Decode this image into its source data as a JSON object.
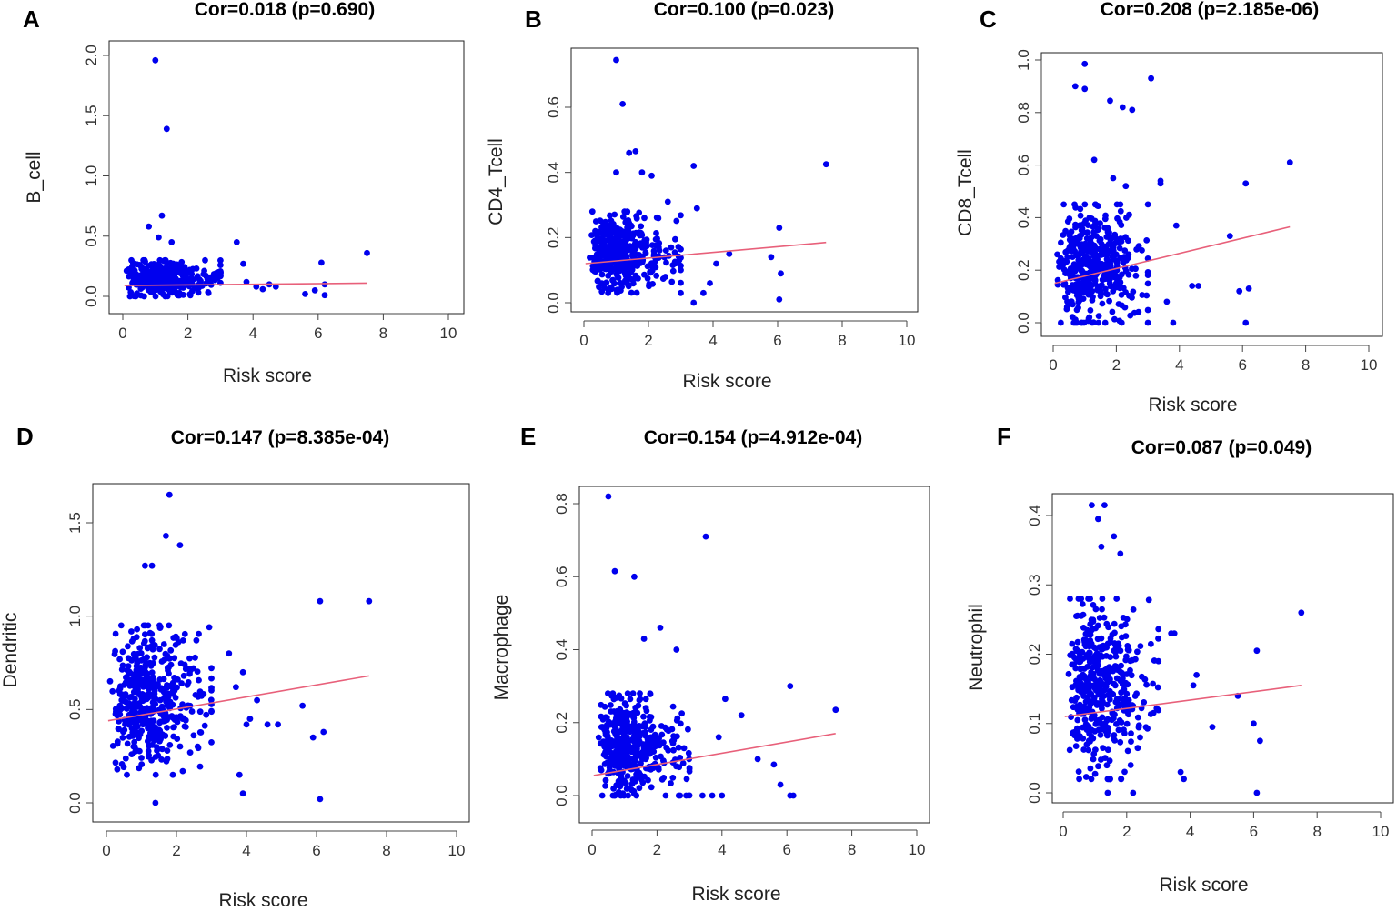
{
  "chart_data": [
    {
      "type": "scatter",
      "panel": "A",
      "title": "Cor=0.018 (p=0.690)",
      "xlabel": "Risk score",
      "ylabel": "B_cell",
      "xlim": [
        0,
        10
      ],
      "ylim": [
        0,
        2
      ],
      "x_ticks": [
        0,
        2,
        4,
        6,
        8,
        10
      ],
      "y_ticks": [
        0.0,
        0.5,
        1.0,
        1.5,
        2.0
      ],
      "x_tick_labels": [
        "0",
        "2",
        "4",
        "6",
        "8",
        "10"
      ],
      "y_tick_labels": [
        "0.0",
        "0.5",
        "1.0",
        "1.5",
        "2.0"
      ],
      "fit_line": {
        "x": [
          0.05,
          7.5
        ],
        "y": [
          0.09,
          0.11
        ]
      },
      "highlight_points": [
        [
          1.0,
          1.96
        ],
        [
          1.35,
          1.39
        ],
        [
          1.2,
          0.67
        ],
        [
          0.8,
          0.58
        ],
        [
          1.5,
          0.45
        ],
        [
          1.1,
          0.49
        ],
        [
          3.5,
          0.45
        ],
        [
          3.7,
          0.27
        ],
        [
          6.1,
          0.28
        ],
        [
          7.5,
          0.36
        ],
        [
          6.2,
          0.1
        ],
        [
          6.2,
          0.01
        ],
        [
          5.9,
          0.05
        ],
        [
          4.1,
          0.08
        ],
        [
          4.5,
          0.1
        ],
        [
          3.8,
          0.12
        ],
        [
          4.3,
          0.06
        ],
        [
          4.7,
          0.08
        ],
        [
          5.6,
          0.02
        ]
      ],
      "cluster": {
        "n": 380,
        "x": [
          0.05,
          3.0
        ],
        "y": [
          0.0,
          0.3
        ]
      }
    },
    {
      "type": "scatter",
      "panel": "B",
      "title": "Cor=0.100 (p=0.023)",
      "xlabel": "Risk score",
      "ylabel": "CD4_Tcell",
      "xlim": [
        0,
        10
      ],
      "ylim": [
        0,
        0.75
      ],
      "x_ticks": [
        0,
        2,
        4,
        6,
        8,
        10
      ],
      "y_ticks": [
        0.0,
        0.2,
        0.4,
        0.6
      ],
      "x_tick_labels": [
        "0",
        "2",
        "4",
        "6",
        "8",
        "10"
      ],
      "y_tick_labels": [
        "0.0",
        "0.2",
        "0.4",
        "0.6"
      ],
      "fit_line": {
        "x": [
          0.05,
          7.5
        ],
        "y": [
          0.12,
          0.185
        ]
      },
      "highlight_points": [
        [
          1.0,
          0.745
        ],
        [
          1.2,
          0.61
        ],
        [
          1.4,
          0.46
        ],
        [
          1.6,
          0.465
        ],
        [
          2.1,
          0.39
        ],
        [
          1.8,
          0.4
        ],
        [
          1.0,
          0.4
        ],
        [
          3.4,
          0.42
        ],
        [
          7.5,
          0.425
        ],
        [
          6.05,
          0.23
        ],
        [
          3.5,
          0.29
        ],
        [
          2.6,
          0.31
        ],
        [
          4.5,
          0.15
        ],
        [
          5.8,
          0.14
        ],
        [
          6.1,
          0.09
        ],
        [
          6.05,
          0.01
        ],
        [
          3.7,
          0.03
        ],
        [
          3.9,
          0.06
        ],
        [
          3.4,
          0.0
        ],
        [
          2.7,
          0.17
        ],
        [
          4.1,
          0.12
        ]
      ],
      "cluster": {
        "n": 400,
        "x": [
          0.1,
          3.0
        ],
        "y": [
          0.03,
          0.28
        ]
      }
    },
    {
      "type": "scatter",
      "panel": "C",
      "title": "Cor=0.208 (p=2.185e-06)",
      "xlabel": "Risk score",
      "ylabel": "CD8_Tcell",
      "xlim": [
        0,
        10
      ],
      "ylim": [
        0,
        1.0
      ],
      "x_ticks": [
        0,
        2,
        4,
        6,
        8,
        10
      ],
      "y_ticks": [
        0.0,
        0.2,
        0.4,
        0.6,
        0.8,
        1.0
      ],
      "x_tick_labels": [
        "0",
        "2",
        "4",
        "6",
        "8",
        "10"
      ],
      "y_tick_labels": [
        "0.0",
        "0.2",
        "0.4",
        "0.6",
        "0.8",
        "1.0"
      ],
      "fit_line": {
        "x": [
          0.05,
          7.5
        ],
        "y": [
          0.15,
          0.365
        ]
      },
      "highlight_points": [
        [
          1.0,
          0.985
        ],
        [
          0.7,
          0.9
        ],
        [
          1.0,
          0.89
        ],
        [
          1.8,
          0.845
        ],
        [
          2.2,
          0.82
        ],
        [
          2.5,
          0.81
        ],
        [
          3.1,
          0.93
        ],
        [
          1.3,
          0.62
        ],
        [
          7.5,
          0.61
        ],
        [
          6.1,
          0.53
        ],
        [
          3.4,
          0.53
        ],
        [
          3.4,
          0.54
        ],
        [
          2.3,
          0.52
        ],
        [
          1.9,
          0.55
        ],
        [
          3.9,
          0.37
        ],
        [
          5.6,
          0.33
        ],
        [
          4.6,
          0.14
        ],
        [
          6.2,
          0.13
        ],
        [
          5.9,
          0.12
        ],
        [
          6.1,
          0.0
        ],
        [
          3.8,
          0.0
        ],
        [
          3.6,
          0.08
        ],
        [
          4.4,
          0.14
        ]
      ],
      "cluster": {
        "n": 420,
        "x": [
          0.1,
          3.0
        ],
        "y": [
          0.0,
          0.45
        ]
      }
    },
    {
      "type": "scatter",
      "panel": "D",
      "title": "Cor=0.147 (p=8.385e-04)",
      "xlabel": "Risk score",
      "ylabel": "Dendritic",
      "xlim": [
        0,
        10
      ],
      "ylim": [
        0,
        1.7
      ],
      "x_ticks": [
        0,
        2,
        4,
        6,
        8,
        10
      ],
      "y_ticks": [
        0.0,
        0.5,
        1.0,
        1.5
      ],
      "x_tick_labels": [
        "0",
        "2",
        "4",
        "6",
        "8",
        "10"
      ],
      "y_tick_labels": [
        "0.0",
        "0.5",
        "1.0",
        "1.5"
      ],
      "fit_line": {
        "x": [
          0.05,
          7.5
        ],
        "y": [
          0.44,
          0.68
        ]
      },
      "highlight_points": [
        [
          1.8,
          1.65
        ],
        [
          1.7,
          1.43
        ],
        [
          2.1,
          1.38
        ],
        [
          1.1,
          1.27
        ],
        [
          1.3,
          1.27
        ],
        [
          6.1,
          1.08
        ],
        [
          7.5,
          1.08
        ],
        [
          3.5,
          0.8
        ],
        [
          3.8,
          0.15
        ],
        [
          3.9,
          0.05
        ],
        [
          1.4,
          0.0
        ],
        [
          6.1,
          0.02
        ],
        [
          5.6,
          0.52
        ],
        [
          6.2,
          0.38
        ],
        [
          5.9,
          0.35
        ],
        [
          4.6,
          0.42
        ],
        [
          4.0,
          0.42
        ],
        [
          4.1,
          0.45
        ],
        [
          4.3,
          0.55
        ],
        [
          4.9,
          0.42
        ],
        [
          3.7,
          0.62
        ],
        [
          3.9,
          0.7
        ]
      ],
      "cluster": {
        "n": 460,
        "x": [
          0.1,
          3.0
        ],
        "y": [
          0.15,
          0.95
        ]
      }
    },
    {
      "type": "scatter",
      "panel": "E",
      "title": "Cor=0.154 (p=4.912e-04)",
      "xlabel": "Risk score",
      "ylabel": "Macrophage",
      "xlim": [
        0,
        10
      ],
      "ylim": [
        0,
        0.82
      ],
      "x_ticks": [
        0,
        2,
        4,
        6,
        8,
        10
      ],
      "y_ticks": [
        0.0,
        0.2,
        0.4,
        0.6,
        0.8
      ],
      "x_tick_labels": [
        "0",
        "2",
        "4",
        "6",
        "8",
        "10"
      ],
      "y_tick_labels": [
        "0.0",
        "0.2",
        "0.4",
        "0.6",
        "0.8"
      ],
      "fit_line": {
        "x": [
          0.05,
          7.5
        ],
        "y": [
          0.055,
          0.17
        ]
      },
      "highlight_points": [
        [
          0.5,
          0.82
        ],
        [
          0.7,
          0.615
        ],
        [
          1.3,
          0.6
        ],
        [
          3.5,
          0.71
        ],
        [
          2.1,
          0.46
        ],
        [
          2.6,
          0.4
        ],
        [
          1.6,
          0.43
        ],
        [
          6.1,
          0.3
        ],
        [
          7.5,
          0.235
        ],
        [
          4.1,
          0.265
        ],
        [
          4.6,
          0.22
        ],
        [
          3.9,
          0.16
        ],
        [
          5.1,
          0.1
        ],
        [
          5.6,
          0.085
        ],
        [
          5.8,
          0.03
        ],
        [
          6.1,
          0.0
        ],
        [
          6.2,
          0.0
        ],
        [
          3.4,
          0.0
        ],
        [
          3.7,
          0.0
        ],
        [
          4.0,
          0.0
        ],
        [
          2.9,
          0.0
        ]
      ],
      "cluster": {
        "n": 430,
        "x": [
          0.1,
          3.0
        ],
        "y": [
          0.0,
          0.28
        ]
      }
    },
    {
      "type": "scatter",
      "panel": "F",
      "title": "Cor=0.087 (p=0.049)",
      "xlabel": "Risk score",
      "ylabel": "Neutrophil",
      "xlim": [
        0,
        10
      ],
      "ylim": [
        0,
        0.42
      ],
      "x_ticks": [
        0,
        2,
        4,
        6,
        8,
        10
      ],
      "y_ticks": [
        0.0,
        0.1,
        0.2,
        0.3,
        0.4
      ],
      "x_tick_labels": [
        "0",
        "2",
        "4",
        "6",
        "8",
        "10"
      ],
      "y_tick_labels": [
        "0.0",
        "0.1",
        "0.2",
        "0.3",
        "0.4"
      ],
      "fit_line": {
        "x": [
          0.05,
          7.5
        ],
        "y": [
          0.11,
          0.155
        ]
      },
      "highlight_points": [
        [
          0.9,
          0.415
        ],
        [
          1.3,
          0.415
        ],
        [
          1.1,
          0.395
        ],
        [
          1.6,
          0.37
        ],
        [
          1.8,
          0.345
        ],
        [
          1.2,
          0.355
        ],
        [
          7.5,
          0.26
        ],
        [
          6.1,
          0.205
        ],
        [
          3.4,
          0.23
        ],
        [
          3.5,
          0.23
        ],
        [
          5.5,
          0.14
        ],
        [
          6.0,
          0.1
        ],
        [
          6.2,
          0.075
        ],
        [
          6.1,
          0.0
        ],
        [
          3.7,
          0.03
        ],
        [
          3.8,
          0.02
        ],
        [
          4.1,
          0.155
        ],
        [
          4.7,
          0.095
        ],
        [
          4.2,
          0.17
        ],
        [
          1.4,
          0.0
        ],
        [
          2.2,
          0.0
        ]
      ],
      "cluster": {
        "n": 430,
        "x": [
          0.1,
          3.0
        ],
        "y": [
          0.02,
          0.28
        ]
      }
    }
  ]
}
